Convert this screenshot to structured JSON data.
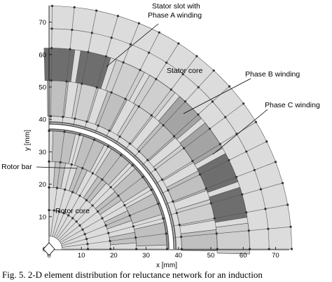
{
  "labels": {
    "stator_slot": [
      "Stator slot with",
      "Phase A winding"
    ],
    "stator_core": "Stator core",
    "phase_b": "Phase B winding",
    "phase_c": "Phase C winding",
    "rotor_bar": "Rotor bar",
    "rotor_core": "Rotor core"
  },
  "axes": {
    "xlabel": "x [mm]",
    "ylabel": "y [mm]",
    "xticks": [
      "0",
      "10",
      "20",
      "30",
      "40",
      "50",
      "60",
      "70"
    ],
    "yticks": [
      "0",
      "10",
      "20",
      "30",
      "40",
      "50",
      "60",
      "70"
    ],
    "xlim": [
      0,
      75
    ],
    "ylim": [
      0,
      75
    ]
  },
  "caption": "Fig. 5.  2-D element distribution for reluctance network for an induction",
  "colors": {
    "light": "#dcdcdc",
    "mid": "#c0c0c0",
    "phase_a": "#6e6e6e",
    "phase_b": "#cfcfcf",
    "phase_c": "#a4a4a4",
    "line": "#555555",
    "node": "#333333"
  }
}
